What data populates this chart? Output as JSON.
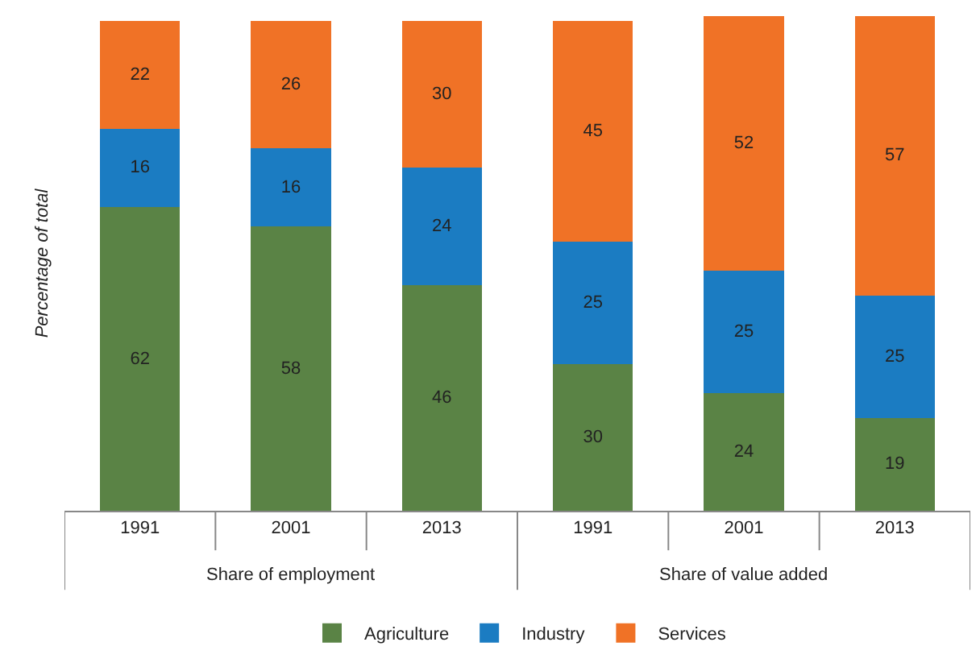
{
  "chart_data": {
    "type": "bar",
    "stacked": true,
    "data_labels": true,
    "ylabel": "Percentage of total",
    "categories": [
      "1991",
      "2001",
      "2013",
      "1991",
      "2001",
      "2013"
    ],
    "annotations": [
      "Share of employment",
      "Share of value added"
    ],
    "series": [
      {
        "name": "Agriculture",
        "color": "#5a8345",
        "values": [
          62,
          58,
          46,
          30,
          24,
          19
        ]
      },
      {
        "name": "Industry",
        "color": "#1b7cc2",
        "values": [
          16,
          16,
          24,
          25,
          25,
          25
        ]
      },
      {
        "name": "Services",
        "color": "#f07226",
        "values": [
          22,
          26,
          30,
          45,
          52,
          57
        ]
      }
    ],
    "grid": false,
    "legend": "bottom"
  }
}
